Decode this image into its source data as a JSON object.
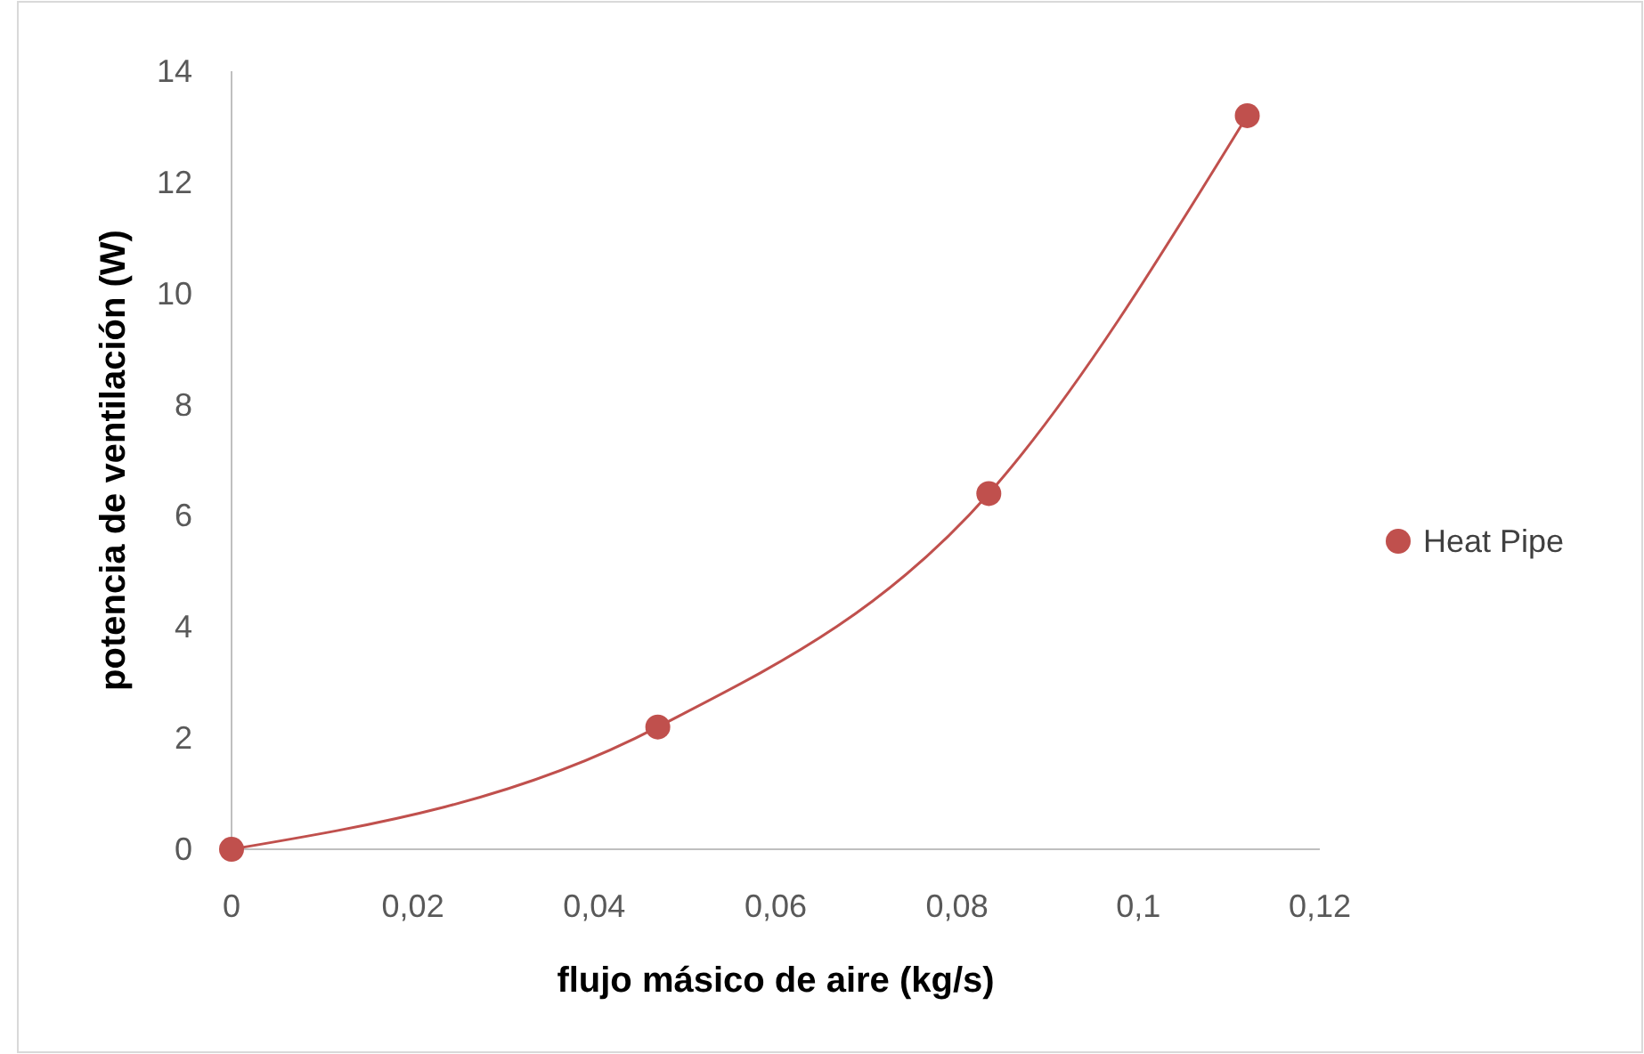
{
  "chart_data": {
    "type": "line",
    "xlabel": "flujo másico de aire (kg/s)",
    "ylabel": "potencia de ventilación (W)",
    "x": [
      0,
      0.047,
      0.0835,
      0.112
    ],
    "series": [
      {
        "name": "Heat Pipe",
        "color": "#c0504d",
        "values": [
          0,
          2.2,
          6.4,
          13.2
        ]
      }
    ],
    "xlim": [
      0,
      0.12
    ],
    "xticks": [
      0,
      {
        "value": 0.02,
        "label": "0,02"
      },
      {
        "value": 0.04,
        "label": "0,04"
      },
      {
        "value": 0.06,
        "label": "0,06"
      },
      {
        "value": 0.08,
        "label": "0,08"
      },
      {
        "value": 0.1,
        "label": "0,1"
      },
      {
        "value": 0.12,
        "label": "0,12"
      }
    ],
    "ylim": [
      0,
      14
    ],
    "yticks": [
      0,
      2,
      4,
      6,
      8,
      10,
      12,
      14
    ],
    "marker": "circle",
    "legend": "right",
    "grid": false
  }
}
